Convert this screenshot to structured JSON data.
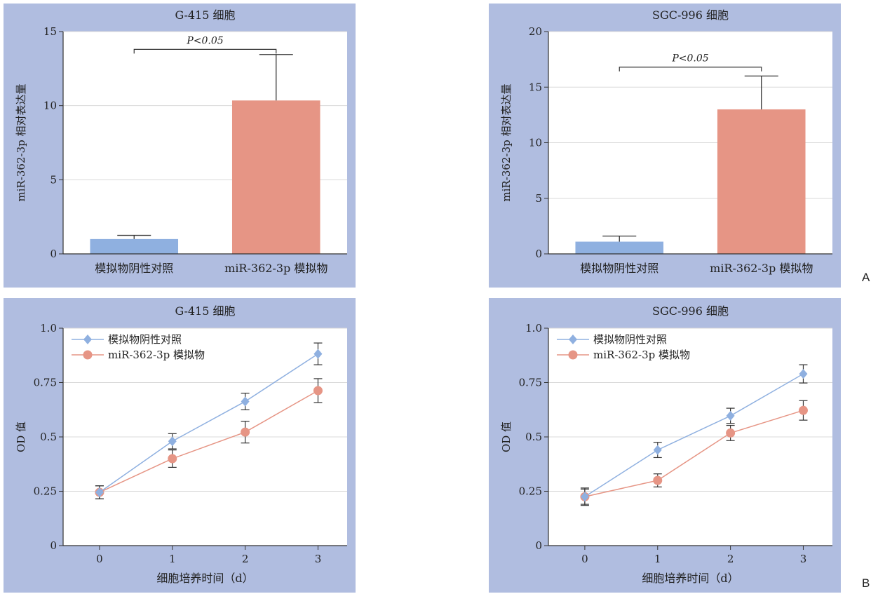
{
  "panel_letters": [
    "A",
    "B"
  ],
  "colors": {
    "panel_bg": "#b0bde0",
    "plot_bg": "#ffffff",
    "control": "#8fb0e0",
    "mimic": "#e69585",
    "bar_control": "#8fb0e0",
    "bar_mimic": "#e69585",
    "grid": "#d8d8d8",
    "axis": "#333333"
  },
  "chart_data": [
    {
      "type": "bar",
      "title": "G-415 细胞",
      "ylabel": "miR-362-3p 相对表达量",
      "xlabel": "",
      "categories": [
        "模拟物阴性对照",
        "miR-362-3p 模拟物"
      ],
      "values": [
        1.0,
        10.35
      ],
      "errors": [
        0.25,
        3.1
      ],
      "ylim": [
        0,
        15
      ],
      "yticks": [
        "0",
        "5",
        "10",
        "15"
      ],
      "grid": true,
      "annotation": "P<0.05",
      "annotation_y": 13.8
    },
    {
      "type": "bar",
      "title": "SGC-996 细胞",
      "ylabel": "miR-362-3p 相对表达量",
      "xlabel": "",
      "categories": [
        "模拟物阴性对照",
        "miR-362-3p 模拟物"
      ],
      "values": [
        1.1,
        13.0
      ],
      "errors": [
        0.5,
        3.0
      ],
      "ylim": [
        0,
        20
      ],
      "yticks": [
        "0",
        "5",
        "10",
        "15",
        "20"
      ],
      "grid": true,
      "annotation": "P<0.05",
      "annotation_y": 16.8
    },
    {
      "type": "line",
      "title": "G-415 细胞",
      "ylabel": "OD 值",
      "xlabel": "细胞培养时间（d）",
      "x": [
        0,
        1,
        2,
        3
      ],
      "xticks": [
        "0",
        "1",
        "2",
        "3"
      ],
      "ylim": [
        0,
        1.0
      ],
      "yticks": [
        "0",
        "0.25",
        "0.5",
        "0.75",
        "1.0"
      ],
      "grid": true,
      "legend": "top-left",
      "series": [
        {
          "name": "模拟物阴性对照",
          "marker": "diamond",
          "values": [
            0.245,
            0.48,
            0.663,
            0.882
          ],
          "errors": [
            0.03,
            0.035,
            0.038,
            0.05
          ]
        },
        {
          "name": "miR-362-3p 模拟物",
          "marker": "circle",
          "values": [
            0.245,
            0.4,
            0.522,
            0.713
          ],
          "errors": [
            0.03,
            0.04,
            0.05,
            0.055
          ]
        }
      ]
    },
    {
      "type": "line",
      "title": "SGC-996 细胞",
      "ylabel": "OD 值",
      "xlabel": "细胞培养时间（d）",
      "x": [
        0,
        1,
        2,
        3
      ],
      "xticks": [
        "0",
        "1",
        "2",
        "3"
      ],
      "ylim": [
        0,
        1.0
      ],
      "yticks": [
        "0",
        "0.25",
        "0.5",
        "0.75",
        "1.0"
      ],
      "grid": true,
      "legend": "top-left",
      "series": [
        {
          "name": "模拟物阴性对照",
          "marker": "diamond",
          "values": [
            0.225,
            0.44,
            0.597,
            0.79
          ],
          "errors": [
            0.035,
            0.035,
            0.035,
            0.042
          ]
        },
        {
          "name": "miR-362-3p 模拟物",
          "marker": "circle",
          "values": [
            0.225,
            0.3,
            0.518,
            0.622
          ],
          "errors": [
            0.04,
            0.03,
            0.035,
            0.045
          ]
        }
      ]
    }
  ]
}
